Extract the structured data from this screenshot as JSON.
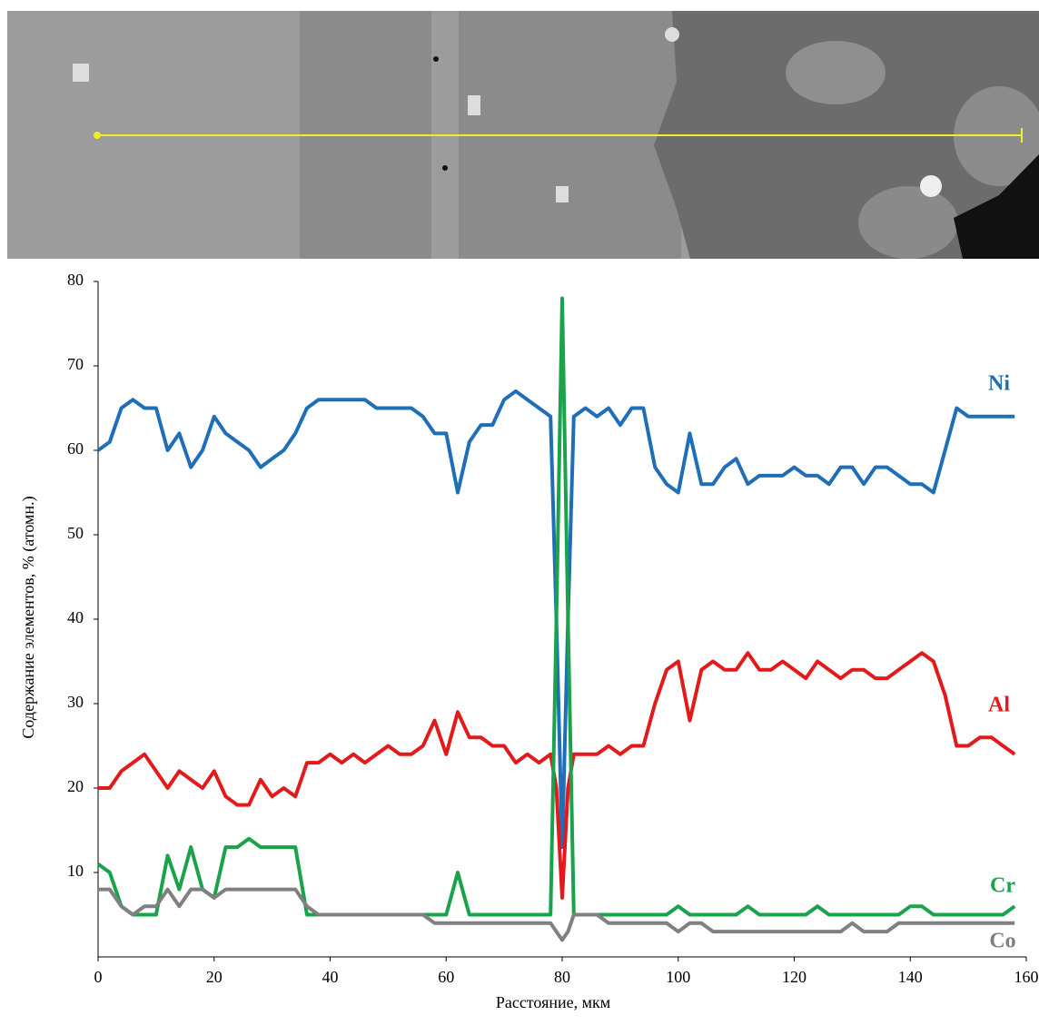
{
  "chart_data": {
    "type": "line",
    "x_label": "Расстояние, мкм",
    "y_label": "Содержание элементов, % (атомн.)",
    "x": [
      0,
      2,
      4,
      6,
      8,
      10,
      12,
      14,
      16,
      18,
      20,
      22,
      24,
      26,
      28,
      30,
      32,
      34,
      36,
      38,
      40,
      42,
      44,
      46,
      48,
      50,
      52,
      54,
      56,
      58,
      60,
      62,
      64,
      66,
      68,
      70,
      72,
      74,
      76,
      78,
      79,
      80,
      81,
      82,
      84,
      86,
      88,
      90,
      92,
      94,
      96,
      98,
      100,
      102,
      104,
      106,
      108,
      110,
      112,
      114,
      116,
      118,
      120,
      122,
      124,
      126,
      128,
      130,
      132,
      134,
      136,
      138,
      140,
      142,
      144,
      146,
      148,
      150,
      152,
      154,
      156,
      158
    ],
    "series": [
      {
        "name": "Ni",
        "color": "#1f6fb8",
        "values": [
          60,
          61,
          65,
          66,
          65,
          65,
          60,
          62,
          58,
          60,
          64,
          62,
          61,
          60,
          58,
          59,
          60,
          62,
          65,
          66,
          66,
          66,
          66,
          66,
          65,
          65,
          65,
          65,
          64,
          62,
          62,
          55,
          61,
          63,
          63,
          66,
          67,
          66,
          65,
          64,
          40,
          13,
          40,
          64,
          65,
          64,
          65,
          63,
          65,
          65,
          58,
          56,
          55,
          62,
          56,
          56,
          58,
          59,
          56,
          57,
          57,
          57,
          58,
          57,
          57,
          56,
          58,
          58,
          56,
          58,
          58,
          57,
          56,
          56,
          55,
          60,
          65,
          64,
          64,
          64,
          64,
          64
        ]
      },
      {
        "name": "Al",
        "color": "#e31a1c",
        "values": [
          20,
          20,
          22,
          23,
          24,
          22,
          20,
          22,
          21,
          20,
          22,
          19,
          18,
          18,
          21,
          19,
          20,
          19,
          23,
          23,
          24,
          23,
          24,
          23,
          24,
          25,
          24,
          24,
          25,
          28,
          24,
          29,
          26,
          26,
          25,
          25,
          23,
          24,
          23,
          24,
          20,
          7,
          20,
          24,
          24,
          24,
          25,
          24,
          25,
          25,
          30,
          34,
          35,
          28,
          34,
          35,
          34,
          34,
          36,
          34,
          34,
          35,
          34,
          33,
          35,
          34,
          33,
          34,
          34,
          33,
          33,
          34,
          35,
          36,
          35,
          31,
          25,
          25,
          26,
          26,
          25,
          24
        ]
      },
      {
        "name": "Cr",
        "color": "#1aa34a",
        "values": [
          11,
          10,
          6,
          5,
          5,
          5,
          12,
          8,
          13,
          8,
          7,
          13,
          13,
          14,
          13,
          13,
          13,
          13,
          5,
          5,
          5,
          5,
          5,
          5,
          5,
          5,
          5,
          5,
          5,
          5,
          5,
          10,
          5,
          5,
          5,
          5,
          5,
          5,
          5,
          5,
          40,
          78,
          40,
          5,
          5,
          5,
          5,
          5,
          5,
          5,
          5,
          5,
          6,
          5,
          5,
          5,
          5,
          5,
          6,
          5,
          5,
          5,
          5,
          5,
          6,
          5,
          5,
          5,
          5,
          5,
          5,
          5,
          6,
          6,
          5,
          5,
          5,
          5,
          5,
          5,
          5,
          6
        ]
      },
      {
        "name": "Co",
        "color": "#808080",
        "values": [
          8,
          8,
          6,
          5,
          6,
          6,
          8,
          6,
          8,
          8,
          7,
          8,
          8,
          8,
          8,
          8,
          8,
          8,
          6,
          5,
          5,
          5,
          5,
          5,
          5,
          5,
          5,
          5,
          5,
          4,
          4,
          4,
          4,
          4,
          4,
          4,
          4,
          4,
          4,
          4,
          3,
          2,
          3,
          5,
          5,
          5,
          4,
          4,
          4,
          4,
          4,
          4,
          3,
          4,
          4,
          3,
          3,
          3,
          3,
          3,
          3,
          3,
          3,
          3,
          3,
          3,
          3,
          4,
          3,
          3,
          3,
          4,
          4,
          4,
          4,
          4,
          4,
          4,
          4,
          4,
          4,
          4
        ]
      }
    ],
    "xlim": [
      0,
      160
    ],
    "xticks": [
      0,
      20,
      40,
      60,
      80,
      100,
      120,
      140,
      160
    ],
    "ylim": [
      0,
      80
    ],
    "yticks": [
      10,
      20,
      30,
      40,
      50,
      60,
      70,
      80
    ],
    "grid": false
  }
}
